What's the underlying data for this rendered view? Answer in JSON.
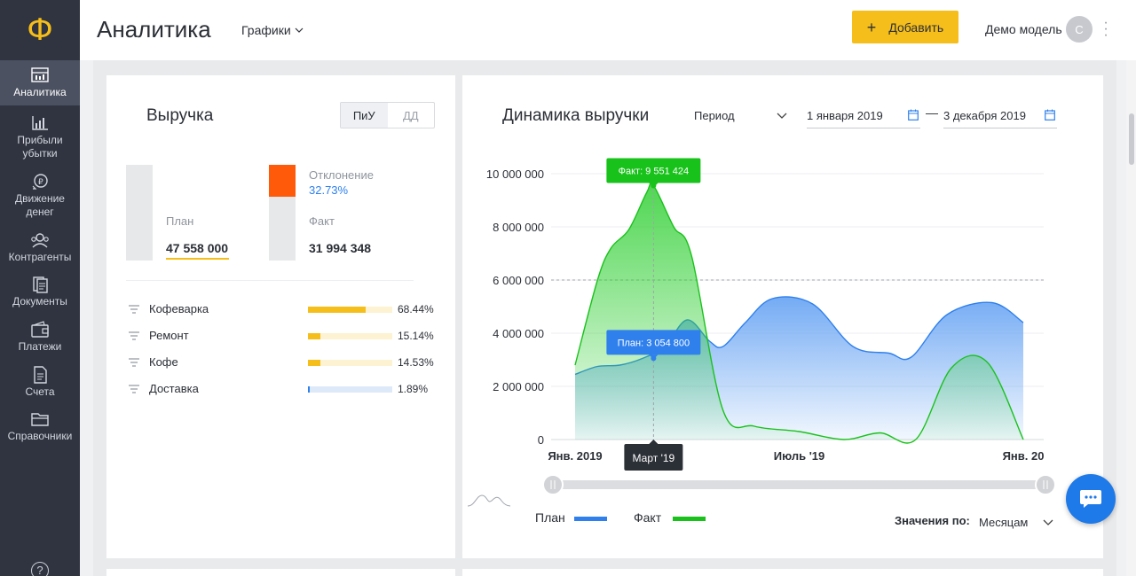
{
  "app": {
    "logo_symbol": "Ф",
    "accent_color": "#f6be1a"
  },
  "sidebar": {
    "items": [
      {
        "label": "Аналитика",
        "icon": "analytics-icon",
        "active": true
      },
      {
        "label": "Прибыли убытки",
        "icon": "bar-chart-icon"
      },
      {
        "label": "Движение денег",
        "icon": "money-flow-icon"
      },
      {
        "label": "Контрагенты",
        "icon": "contractors-icon"
      },
      {
        "label": "Документы",
        "icon": "documents-icon"
      },
      {
        "label": "Платежи",
        "icon": "wallet-icon"
      },
      {
        "label": "Счета",
        "icon": "invoice-icon"
      },
      {
        "label": "Справочники",
        "icon": "folder-icon"
      }
    ],
    "help_label": "?"
  },
  "header": {
    "title": "Аналитика",
    "view_select": "Графики",
    "add_button": "Добавить",
    "user_name": "Демо модель",
    "avatar_initial": "С"
  },
  "revenue": {
    "title": "Выручка",
    "toggle": [
      "ПиУ",
      "ДД"
    ],
    "toggle_selected": "ПиУ",
    "plan_label": "План",
    "plan_value": "47 558 000",
    "deviation_label": "Отклонение",
    "deviation_value": "32.73%",
    "fact_label": "Факт",
    "fact_value": "31 994 348",
    "categories": [
      {
        "name": "Кофеварка",
        "pct": "68.44%",
        "fill": 0.6844,
        "color": "#f6be1a",
        "track": "#fdf2d1"
      },
      {
        "name": "Ремонт",
        "pct": "15.14%",
        "fill": 0.1514,
        "color": "#f6be1a",
        "track": "#fdf2d1"
      },
      {
        "name": "Кофе",
        "pct": "14.53%",
        "fill": 0.1453,
        "color": "#f6be1a",
        "track": "#fdf2d1"
      },
      {
        "name": "Доставка",
        "pct": "1.89%",
        "fill": 0.0189,
        "color": "#2f80ed",
        "track": "#dde9f9"
      }
    ]
  },
  "dynamics": {
    "title": "Динамика выручки",
    "period_label": "Период",
    "date_from": "1 января 2019",
    "date_to": "3 декабря 2019",
    "date_separator": "—",
    "tooltip_fact": "Факт: 9 551 424",
    "tooltip_plan": "План: 3 054 800",
    "hover_x_label": "Март '19",
    "legend_plan": "План",
    "legend_fact": "Факт",
    "values_by_label": "Значения по:",
    "values_by_value": "Месяцам"
  },
  "chart_data": {
    "type": "area",
    "x_ticks": [
      "Янв. 2019",
      "Июль '19",
      "Янв. 20"
    ],
    "y_ticks": [
      "10 000 000",
      "8 000 000",
      "6 000 000",
      "4 000 000",
      "2 000 000",
      "0"
    ],
    "ylim": [
      0,
      10000000
    ],
    "grid": true,
    "series": [
      {
        "name": "План",
        "color": "#2f80ed",
        "points": [
          [
            0,
            2450000
          ],
          [
            0.5,
            2750000
          ],
          [
            1,
            2800000
          ],
          [
            1.5,
            3050000
          ],
          [
            2,
            3500000
          ],
          [
            2.5,
            4500000
          ],
          [
            3,
            3700000
          ],
          [
            3.3,
            3500000
          ],
          [
            3.8,
            4400000
          ],
          [
            4.4,
            5300000
          ],
          [
            5.3,
            5100000
          ],
          [
            6.2,
            3500000
          ],
          [
            7,
            3250000
          ],
          [
            7.5,
            3100000
          ],
          [
            8.3,
            4700000
          ],
          [
            9.3,
            5150000
          ],
          [
            10,
            4400000
          ]
        ]
      },
      {
        "name": "Факт",
        "color": "#19c21b",
        "points": [
          [
            0,
            2800000
          ],
          [
            0.5,
            6000000
          ],
          [
            0.8,
            7200000
          ],
          [
            1.2,
            7900000
          ],
          [
            1.6,
            9300000
          ],
          [
            1.75,
            9551424
          ],
          [
            2.2,
            8000000
          ],
          [
            2.6,
            6900000
          ],
          [
            3.3,
            1100000
          ],
          [
            4,
            500000
          ],
          [
            5,
            300000
          ],
          [
            6,
            0
          ],
          [
            6.8,
            250000
          ],
          [
            7.6,
            0
          ],
          [
            8.4,
            2700000
          ],
          [
            9.2,
            2900000
          ],
          [
            10,
            0
          ]
        ]
      }
    ],
    "highlight": {
      "x": 1.75,
      "fact": 9551424,
      "plan": 3054800
    },
    "reference_line_y": 6000000
  },
  "colors": {
    "plan": "#2f80ed",
    "fact": "#19c21b",
    "deviation": "#ff5a0a",
    "chat_button": "#1e7ae8"
  }
}
